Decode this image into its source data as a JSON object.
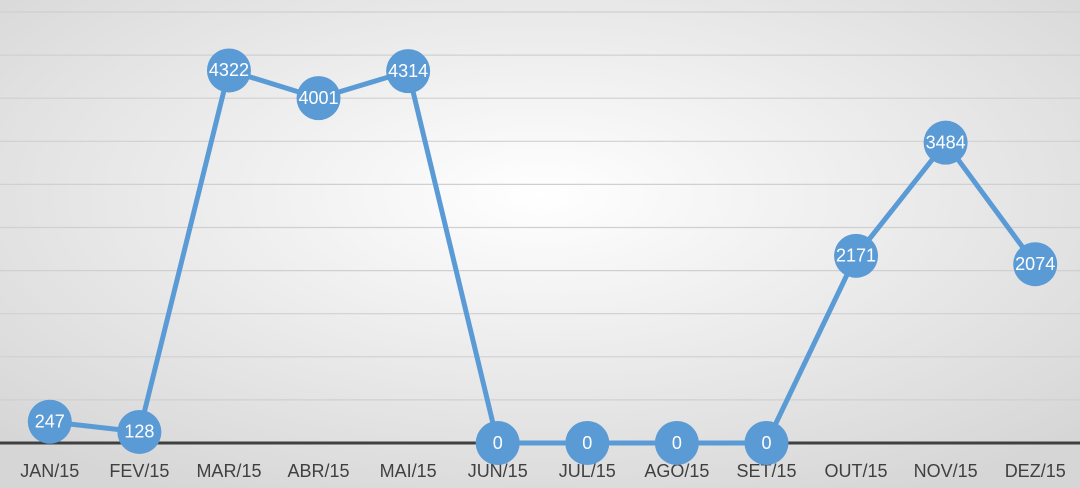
{
  "chart_data": {
    "type": "line",
    "categories": [
      "JAN/15",
      "FEV/15",
      "MAR/15",
      "ABR/15",
      "MAI/15",
      "JUN/15",
      "JUL/15",
      "AGO/15",
      "SET/15",
      "OUT/15",
      "NOV/15",
      "DEZ/15"
    ],
    "series": [
      {
        "color": "#5b9bd5",
        "values": [
          247,
          128,
          4322,
          4001,
          4314,
          0,
          0,
          0,
          0,
          2171,
          3484,
          2074
        ]
      }
    ],
    "ylim": [
      0,
      5000
    ],
    "yticks": [
      0,
      500,
      1000,
      1500,
      2000,
      2500,
      3000,
      3500,
      4000,
      4500,
      5000
    ],
    "grid": true
  }
}
